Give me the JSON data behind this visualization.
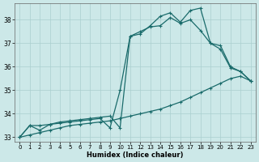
{
  "xlabel": "Humidex (Indice chaleur)",
  "bg_color": "#cce8e8",
  "line_color": "#1a6b6b",
  "grid_color": "#aacfcf",
  "xlim": [
    -0.5,
    23.5
  ],
  "ylim": [
    32.8,
    38.7
  ],
  "xticks": [
    0,
    1,
    2,
    3,
    4,
    5,
    6,
    7,
    8,
    9,
    10,
    11,
    12,
    13,
    14,
    15,
    16,
    17,
    18,
    19,
    20,
    21,
    22,
    23
  ],
  "yticks": [
    33,
    34,
    35,
    36,
    37,
    38
  ],
  "line1_x": [
    0,
    1,
    2,
    3,
    4,
    5,
    6,
    7,
    8,
    9,
    10,
    11,
    12,
    13,
    14,
    15,
    16,
    17,
    18,
    19,
    20,
    21,
    22,
    23
  ],
  "line1_y": [
    33.0,
    33.1,
    33.2,
    33.3,
    33.4,
    33.5,
    33.55,
    33.6,
    33.65,
    33.7,
    33.8,
    33.9,
    34.0,
    34.1,
    34.2,
    34.35,
    34.5,
    34.7,
    34.9,
    35.1,
    35.3,
    35.5,
    35.6,
    35.4
  ],
  "line2_x": [
    0,
    1,
    2,
    3,
    4,
    5,
    6,
    7,
    8,
    9,
    10,
    11,
    12,
    13,
    14,
    15,
    16,
    17,
    18,
    19,
    20,
    21,
    22,
    23
  ],
  "line2_y": [
    33.0,
    33.5,
    33.5,
    33.55,
    33.6,
    33.65,
    33.7,
    33.75,
    33.8,
    33.4,
    35.0,
    37.3,
    37.5,
    37.7,
    37.75,
    38.1,
    37.85,
    38.0,
    37.55,
    37.0,
    36.9,
    36.0,
    35.8,
    35.4
  ],
  "line3_x": [
    0,
    1,
    2,
    3,
    4,
    5,
    6,
    7,
    8,
    9,
    10,
    11,
    12,
    13,
    14,
    15,
    16,
    17,
    18,
    19,
    20,
    21,
    22,
    23
  ],
  "line3_y": [
    33.0,
    33.5,
    33.3,
    33.55,
    33.65,
    33.7,
    33.75,
    33.8,
    33.85,
    33.9,
    33.4,
    37.3,
    37.4,
    37.75,
    38.15,
    38.3,
    37.9,
    38.4,
    38.5,
    37.0,
    36.75,
    35.95,
    35.8,
    35.4
  ]
}
